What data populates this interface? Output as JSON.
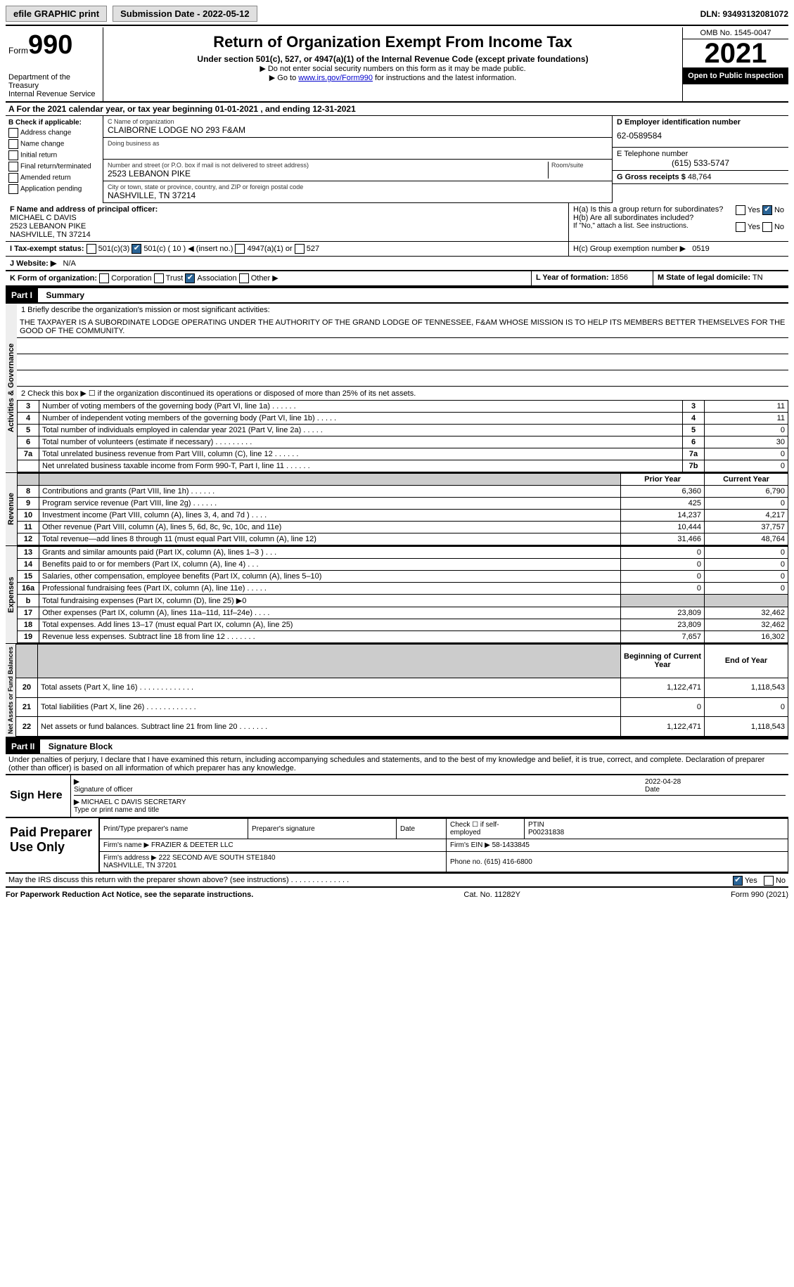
{
  "topbar": {
    "efile": "efile GRAPHIC print",
    "submission_label": "Submission Date - 2022-05-12",
    "dln": "DLN: 93493132081072"
  },
  "header": {
    "form_word": "Form",
    "form_no": "990",
    "dept": "Department of the Treasury\nInternal Revenue Service",
    "title": "Return of Organization Exempt From Income Tax",
    "subtitle": "Under section 501(c), 527, or 4947(a)(1) of the Internal Revenue Code (except private foundations)",
    "note1": "▶ Do not enter social security numbers on this form as it may be made public.",
    "note2_pre": "▶ Go to ",
    "note2_link": "www.irs.gov/Form990",
    "note2_post": " for instructions and the latest information.",
    "omb": "OMB No. 1545-0047",
    "year": "2021",
    "open": "Open to Public Inspection"
  },
  "section_a": "A For the 2021 calendar year, or tax year beginning 01-01-2021   , and ending 12-31-2021",
  "col_b": {
    "title": "B Check if applicable:",
    "items": [
      "Address change",
      "Name change",
      "Initial return",
      "Final return/terminated",
      "Amended return",
      "Application pending"
    ]
  },
  "col_c": {
    "name_label": "C Name of organization",
    "name": "CLAIBORNE LODGE NO 293 F&AM",
    "dba_label": "Doing business as",
    "dba": "",
    "addr_label": "Number and street (or P.O. box if mail is not delivered to street address)",
    "room_label": "Room/suite",
    "addr": "2523 LEBANON PIKE",
    "city_label": "City or town, state or province, country, and ZIP or foreign postal code",
    "city": "NASHVILLE, TN  37214"
  },
  "col_d": {
    "ein_label": "D Employer identification number",
    "ein": "62-0589584",
    "phone_label": "E Telephone number",
    "phone": "(615) 533-5747",
    "gross_label": "G Gross receipts $",
    "gross": "48,764"
  },
  "section_f": {
    "label": "F Name and address of principal officer:",
    "name": "MICHAEL C DAVIS",
    "addr1": "2523 LEBANON PIKE",
    "addr2": "NASHVILLE, TN  37214"
  },
  "section_h": {
    "ha": "H(a)  Is this a group return for subordinates?",
    "hb": "H(b)  Are all subordinates included?",
    "hb_note": "If \"No,\" attach a list. See instructions.",
    "hc": "H(c)  Group exemption number ▶",
    "hc_val": "0519"
  },
  "section_i": {
    "label": "I  Tax-exempt status:",
    "opts": [
      "501(c)(3)",
      "501(c) ( 10 ) ◀ (insert no.)",
      "4947(a)(1) or",
      "527"
    ],
    "checked_index": 1
  },
  "section_j": {
    "label": "J  Website: ▶",
    "val": "N/A"
  },
  "section_k": {
    "label": "K Form of organization:",
    "opts": [
      "Corporation",
      "Trust",
      "Association",
      "Other ▶"
    ],
    "checked_index": 2
  },
  "section_l": {
    "label": "L Year of formation:",
    "val": "1856"
  },
  "section_m": {
    "label": "M State of legal domicile:",
    "val": "TN"
  },
  "part1": {
    "hdr": "Part I",
    "title": "Summary",
    "line1_label": "1  Briefly describe the organization's mission or most significant activities:",
    "mission": "THE TAXPAYER IS A SUBORDINATE LODGE OPERATING UNDER THE AUTHORITY OF THE GRAND LODGE OF TENNESSEE, F&AM WHOSE MISSION IS TO HELP ITS MEMBERS BETTER THEMSELVES FOR THE GOOD OF THE COMMUNITY.",
    "line2": "2  Check this box ▶ ☐ if the organization discontinued its operations or disposed of more than 25% of its net assets.",
    "prior_hdr": "Prior Year",
    "current_hdr": "Current Year",
    "boy_hdr": "Beginning of Current Year",
    "eoy_hdr": "End of Year",
    "groups": {
      "gov": "Activities & Governance",
      "rev": "Revenue",
      "exp": "Expenses",
      "net": "Net Assets or Fund Balances"
    },
    "rows_gov": [
      {
        "n": "3",
        "t": "Number of voting members of the governing body (Part VI, line 1a)   .   .   .   .   .   .",
        "box": "3",
        "v": "11"
      },
      {
        "n": "4",
        "t": "Number of independent voting members of the governing body (Part VI, line 1b)   .   .   .   .   .",
        "box": "4",
        "v": "11"
      },
      {
        "n": "5",
        "t": "Total number of individuals employed in calendar year 2021 (Part V, line 2a)   .   .   .   .   .",
        "box": "5",
        "v": "0"
      },
      {
        "n": "6",
        "t": "Total number of volunteers (estimate if necessary)   .   .   .   .   .   .   .   .   .",
        "box": "6",
        "v": "30"
      },
      {
        "n": "7a",
        "t": "Total unrelated business revenue from Part VIII, column (C), line 12   .   .   .   .   .   .",
        "box": "7a",
        "v": "0"
      },
      {
        "n": "",
        "t": "Net unrelated business taxable income from Form 990-T, Part I, line 11   .   .   .   .   .   .",
        "box": "7b",
        "v": "0"
      }
    ],
    "rows_rev": [
      {
        "n": "8",
        "t": "Contributions and grants (Part VIII, line 1h)   .   .   .   .   .   .",
        "p": "6,360",
        "c": "6,790"
      },
      {
        "n": "9",
        "t": "Program service revenue (Part VIII, line 2g)   .   .   .   .   .   .",
        "p": "425",
        "c": "0"
      },
      {
        "n": "10",
        "t": "Investment income (Part VIII, column (A), lines 3, 4, and 7d )   .   .   .   .",
        "p": "14,237",
        "c": "4,217"
      },
      {
        "n": "11",
        "t": "Other revenue (Part VIII, column (A), lines 5, 6d, 8c, 9c, 10c, and 11e)",
        "p": "10,444",
        "c": "37,757"
      },
      {
        "n": "12",
        "t": "Total revenue—add lines 8 through 11 (must equal Part VIII, column (A), line 12)",
        "p": "31,466",
        "c": "48,764"
      }
    ],
    "rows_exp": [
      {
        "n": "13",
        "t": "Grants and similar amounts paid (Part IX, column (A), lines 1–3 )   .   .   .",
        "p": "0",
        "c": "0"
      },
      {
        "n": "14",
        "t": "Benefits paid to or for members (Part IX, column (A), line 4)   .   .   .",
        "p": "0",
        "c": "0"
      },
      {
        "n": "15",
        "t": "Salaries, other compensation, employee benefits (Part IX, column (A), lines 5–10)",
        "p": "0",
        "c": "0"
      },
      {
        "n": "16a",
        "t": "Professional fundraising fees (Part IX, column (A), line 11e)   .   .   .   .   .",
        "p": "0",
        "c": "0"
      },
      {
        "n": "b",
        "t": "Total fundraising expenses (Part IX, column (D), line 25) ▶0",
        "p": "",
        "c": "",
        "shade": true
      },
      {
        "n": "17",
        "t": "Other expenses (Part IX, column (A), lines 11a–11d, 11f–24e)   .   .   .   .",
        "p": "23,809",
        "c": "32,462"
      },
      {
        "n": "18",
        "t": "Total expenses. Add lines 13–17 (must equal Part IX, column (A), line 25)",
        "p": "23,809",
        "c": "32,462"
      },
      {
        "n": "19",
        "t": "Revenue less expenses. Subtract line 18 from line 12   .   .   .   .   .   .   .",
        "p": "7,657",
        "c": "16,302"
      }
    ],
    "rows_net": [
      {
        "n": "20",
        "t": "Total assets (Part X, line 16)   .   .   .   .   .   .   .   .   .   .   .   .   .",
        "p": "1,122,471",
        "c": "1,118,543"
      },
      {
        "n": "21",
        "t": "Total liabilities (Part X, line 26)   .   .   .   .   .   .   .   .   .   .   .   .",
        "p": "0",
        "c": "0"
      },
      {
        "n": "22",
        "t": "Net assets or fund balances. Subtract line 21 from line 20   .   .   .   .   .   .   .",
        "p": "1,122,471",
        "c": "1,118,543"
      }
    ]
  },
  "part2": {
    "hdr": "Part II",
    "title": "Signature Block",
    "decl": "Under penalties of perjury, I declare that I have examined this return, including accompanying schedules and statements, and to the best of my knowledge and belief, it is true, correct, and complete. Declaration of preparer (other than officer) is based on all information of which preparer has any knowledge.",
    "sign_here": "Sign Here",
    "sig_officer": "Signature of officer",
    "sig_date": "2022-04-28",
    "date_label": "Date",
    "officer_name": "MICHAEL C DAVIS  SECRETARY",
    "type_label": "Type or print name and title",
    "paid": "Paid Preparer Use Only",
    "p_name_label": "Print/Type preparer's name",
    "p_sig_label": "Preparer's signature",
    "p_date_label": "Date",
    "p_check": "Check ☐ if self-employed",
    "ptin_label": "PTIN",
    "ptin": "P00231838",
    "firm_name_label": "Firm's name    ▶",
    "firm_name": "FRAZIER & DEETER LLC",
    "firm_ein_label": "Firm's EIN ▶",
    "firm_ein": "58-1433845",
    "firm_addr_label": "Firm's address ▶",
    "firm_addr": "222 SECOND AVE SOUTH STE1840\nNASHVILLE, TN  37201",
    "firm_phone_label": "Phone no.",
    "firm_phone": "(615) 416-6800",
    "discuss": "May the IRS discuss this return with the preparer shown above? (see instructions)   .   .   .   .   .   .   .   .   .   .   .   .   .   .",
    "yes": "Yes",
    "no": "No"
  },
  "footer": {
    "left": "For Paperwork Reduction Act Notice, see the separate instructions.",
    "mid": "Cat. No. 11282Y",
    "right": "Form 990 (2021)"
  }
}
